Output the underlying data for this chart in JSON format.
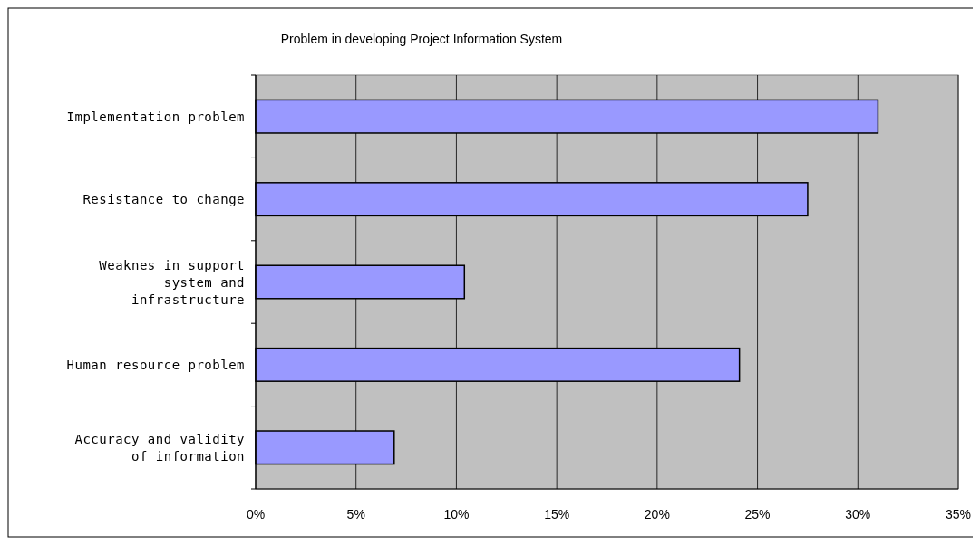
{
  "chart_data": {
    "type": "bar",
    "orientation": "horizontal",
    "title": "Problem in developing Project Information System",
    "categories": [
      "Implementation problem",
      "Resistance to change",
      "Weaknes in support system and infrastructure",
      "Human resource problem",
      "Accuracy and validity of information"
    ],
    "values": [
      31.0,
      27.5,
      10.4,
      24.1,
      6.9
    ],
    "color": "#9999ff",
    "xlim": [
      0,
      35
    ],
    "xticks": [
      {
        "value": 0,
        "label": "0%"
      },
      {
        "value": 5,
        "label": "5%"
      },
      {
        "value": 10,
        "label": "10%"
      },
      {
        "value": 15,
        "label": "15%"
      },
      {
        "value": 20,
        "label": "20%"
      },
      {
        "value": 25,
        "label": "25%"
      },
      {
        "value": 30,
        "label": "30%"
      },
      {
        "value": 35,
        "label": "35%"
      }
    ],
    "grid": "x"
  }
}
